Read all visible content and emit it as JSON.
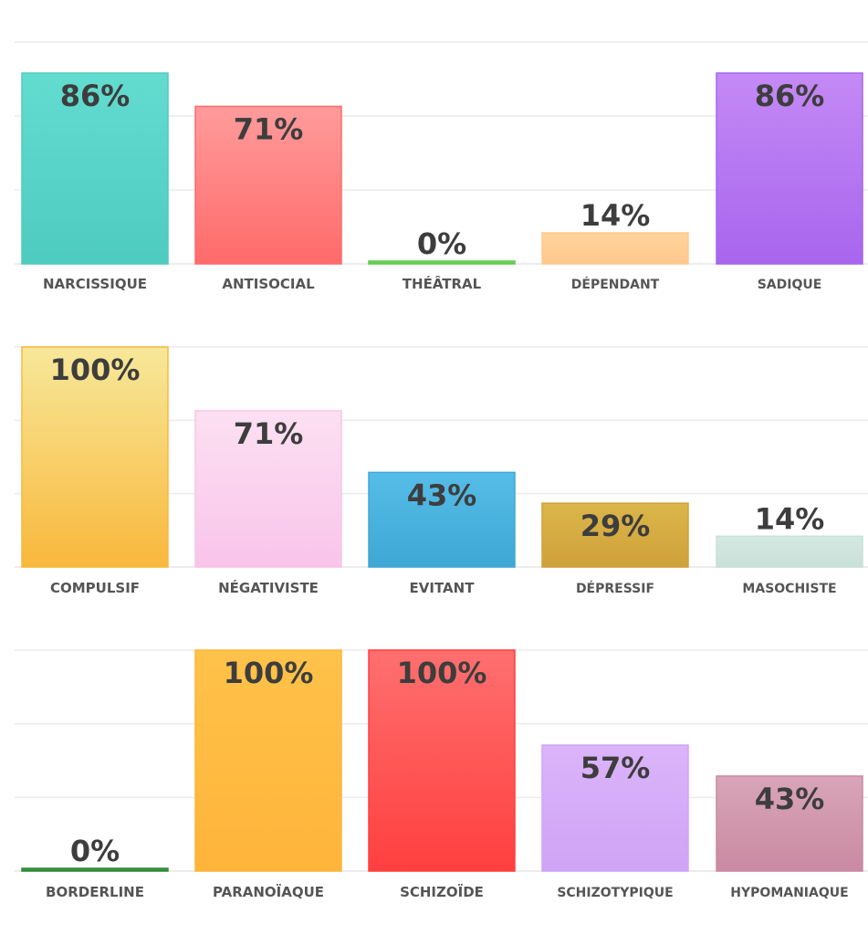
{
  "chart_data": [
    {
      "type": "bar",
      "categories": [
        "NARCISSIQUE",
        "ANTISOCIAL",
        "THÉÂTRAL",
        "DÉPENDANT",
        "SADIQUE"
      ],
      "values": [
        86,
        71,
        0,
        14,
        86
      ],
      "labels": [
        "86%",
        "71%",
        "0%",
        "14%",
        "86%"
      ],
      "colors": [
        [
          "#63dcd0",
          "#4ecbbf"
        ],
        [
          "#ff9b9b",
          "#ff6a6a"
        ],
        [
          "#78d96a",
          "#5fc94f"
        ],
        [
          "#ffd39e",
          "#ffc98d"
        ],
        [
          "#c48af5",
          "#a865ee"
        ]
      ],
      "ylim": [
        0,
        100
      ],
      "grid": true
    },
    {
      "type": "bar",
      "categories": [
        "COMPULSIF",
        "NÉGATIVISTE",
        "EVITANT",
        "DÉPRESSIF",
        "MASOCHISTE"
      ],
      "values": [
        100,
        71,
        43,
        29,
        14
      ],
      "labels": [
        "100%",
        "71%",
        "43%",
        "29%",
        "14%"
      ],
      "colors": [
        [
          "#f7e89a",
          "#f8b83c"
        ],
        [
          "#fce0f2",
          "#f9c4ea"
        ],
        [
          "#56bde8",
          "#3ea7d4"
        ],
        [
          "#dbb64a",
          "#cfa13a"
        ],
        [
          "#d5e9e2",
          "#c9e0d8"
        ]
      ],
      "ylim": [
        0,
        100
      ],
      "grid": true
    },
    {
      "type": "bar",
      "categories": [
        "BORDERLINE",
        "PARANOÏAQUE",
        "SCHIZOÏDE",
        "SCHIZOTYPIQUE",
        "HYPOMANIAQUE"
      ],
      "values": [
        0,
        100,
        100,
        57,
        43
      ],
      "labels": [
        "0%",
        "100%",
        "100%",
        "57%",
        "43%"
      ],
      "colors": [
        [
          "#3f9a45",
          "#2f8a36"
        ],
        [
          "#ffc24a",
          "#ffb43a"
        ],
        [
          "#ff6f6f",
          "#ff3f3f"
        ],
        [
          "#dbb4fa",
          "#cfa4f5"
        ],
        [
          "#d9a5b8",
          "#c98aa2"
        ]
      ],
      "ylim": [
        0,
        100
      ],
      "grid": true
    }
  ]
}
